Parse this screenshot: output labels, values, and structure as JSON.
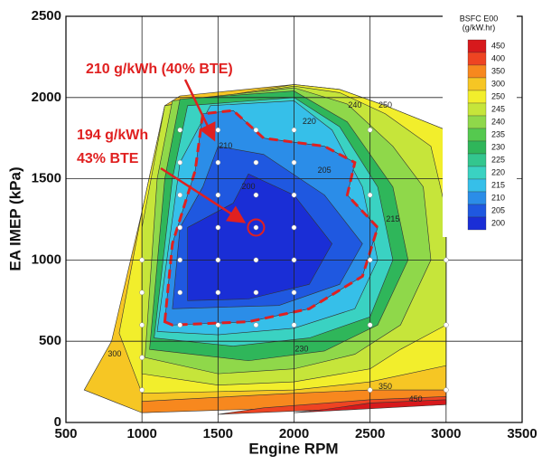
{
  "chart_data": {
    "type": "contour",
    "xlabel": "Engine RPM",
    "ylabel": "EA IMEP (kPa)",
    "xlim": [
      500,
      3500
    ],
    "ylim": [
      0,
      2500
    ],
    "xticks": [
      500,
      1000,
      1500,
      2000,
      2500,
      3000,
      3500
    ],
    "yticks": [
      0,
      500,
      1000,
      1500,
      2000,
      2500
    ],
    "grid": true,
    "colorbar": {
      "title": [
        "BSFC E00",
        "(g/kW.hr)"
      ],
      "levels": [
        450,
        400,
        350,
        300,
        250,
        245,
        240,
        235,
        230,
        225,
        220,
        215,
        210,
        205,
        200
      ],
      "colors": [
        "#d7191c",
        "#ee4422",
        "#f7881e",
        "#f6c624",
        "#f2ee2c",
        "#c6e53a",
        "#8fd84a",
        "#55c94f",
        "#2fb65a",
        "#33c68e",
        "#3ad2c2",
        "#36bfe9",
        "#2b8de8",
        "#1f58e0",
        "#1a2ed6"
      ]
    },
    "contours": [
      {
        "level": 300,
        "color": "#f6c624",
        "x": [
          620,
          800,
          1000,
          1150,
          1250,
          2000,
          2300,
          2600,
          3000,
          3000,
          1000
        ],
        "y": [
          200,
          500,
          1300,
          1950,
          2010,
          2080,
          2050,
          1950,
          1800,
          150,
          60
        ]
      },
      {
        "level": 250,
        "color": "#f2ee2c",
        "x": [
          850,
          1000,
          1150,
          2000,
          2300,
          2600,
          3000,
          3000,
          2500,
          2000,
          1500,
          1000
        ],
        "y": [
          550,
          1300,
          1950,
          2080,
          2050,
          1950,
          1800,
          350,
          250,
          200,
          190,
          180
        ]
      },
      {
        "level": 245,
        "color": "#c6e53a",
        "x": [
          1000,
          1000,
          1150,
          2000,
          2300,
          2600,
          2900,
          3000,
          3000,
          2700,
          2500,
          2000,
          1500
        ],
        "y": [
          300,
          1200,
          1950,
          2070,
          2030,
          1900,
          1700,
          1300,
          600,
          450,
          330,
          250,
          230
        ]
      },
      {
        "level": 240,
        "color": "#8fd84a",
        "x": [
          1020,
          1100,
          1200,
          2000,
          2350,
          2650,
          2850,
          2900,
          2700,
          2400,
          2000,
          1500
        ],
        "y": [
          400,
          1500,
          1980,
          2060,
          1960,
          1700,
          1450,
          1000,
          600,
          420,
          330,
          300
        ]
      },
      {
        "level": 230,
        "color": "#2fb65a",
        "x": [
          1050,
          1150,
          1250,
          2000,
          2350,
          2650,
          2750,
          2550,
          2200,
          1700
        ],
        "y": [
          450,
          1500,
          1990,
          2040,
          1850,
          1450,
          1000,
          600,
          440,
          380
        ]
      },
      {
        "level": 220,
        "color": "#3ad2c2",
        "x": [
          1080,
          1200,
          1300,
          2000,
          2300,
          2550,
          2650,
          2500,
          2100,
          1600
        ],
        "y": [
          520,
          1500,
          1950,
          2000,
          1820,
          1450,
          1000,
          650,
          520,
          470
        ]
      },
      {
        "level": 215,
        "color": "#36bfe9",
        "x": [
          1100,
          1250,
          1450,
          2000,
          2250,
          2450,
          2550,
          2400,
          2000,
          1500
        ],
        "y": [
          560,
          1600,
          1950,
          1980,
          1800,
          1450,
          1000,
          700,
          580,
          540
        ]
      },
      {
        "level": 210,
        "color": "#2b8de8",
        "outline_color": "#e02020",
        "dashed": true,
        "x": [
          1150,
          1200,
          1350,
          1400,
          1600,
          1800,
          2200,
          2400,
          2350,
          2550,
          2450,
          2100,
          1700,
          1200
        ],
        "y": [
          620,
          1100,
          1550,
          1900,
          1920,
          1750,
          1700,
          1600,
          1400,
          1200,
          900,
          700,
          620,
          600
        ]
      },
      {
        "level": 205,
        "color": "#1f58e0",
        "x": [
          1200,
          1250,
          1400,
          1500,
          1800,
          2200,
          2450,
          2300,
          1900
        ],
        "y": [
          700,
          1200,
          1450,
          1700,
          1650,
          1400,
          1100,
          850,
          720
        ]
      },
      {
        "level": 200,
        "color": "#1a2ed6",
        "x": [
          1300,
          1300,
          1600,
          1700,
          2000,
          2250,
          2100,
          1700
        ],
        "y": [
          750,
          1200,
          1350,
          1530,
          1400,
          1100,
          850,
          760
        ]
      },
      {
        "level": 350,
        "color": "#f7881e",
        "x": [
          1000,
          3000,
          3000,
          2500,
          2000,
          1000
        ],
        "y": [
          60,
          120,
          200,
          200,
          180,
          130
        ]
      },
      {
        "level": 400,
        "color": "#ee4422",
        "x": [
          1500,
          3000,
          3000,
          2500,
          1800
        ],
        "y": [
          50,
          110,
          160,
          140,
          90
        ]
      },
      {
        "level": 450,
        "color": "#d7191c",
        "x": [
          2000,
          3000,
          3000,
          2500,
          2200
        ],
        "y": [
          60,
          110,
          140,
          120,
          80
        ]
      }
    ],
    "points": {
      "x": [
        1000,
        1000,
        1000,
        1000,
        1000,
        1250,
        1250,
        1250,
        1250,
        1250,
        1250,
        1250,
        1500,
        1500,
        1500,
        1500,
        1500,
        1500,
        1500,
        1750,
        1750,
        1750,
        1750,
        1750,
        1750,
        1750,
        2000,
        2000,
        2000,
        2000,
        2000,
        2000,
        2000,
        2500,
        2500,
        2500,
        2500,
        2500,
        3000,
        3000,
        3000,
        3000,
        3000
      ],
      "y": [
        200,
        400,
        600,
        800,
        1000,
        600,
        800,
        1000,
        1200,
        1400,
        1600,
        1800,
        600,
        800,
        1000,
        1200,
        1400,
        1600,
        1800,
        600,
        800,
        1000,
        1200,
        1400,
        1600,
        1800,
        600,
        800,
        1000,
        1200,
        1400,
        1600,
        1800,
        200,
        600,
        1000,
        1400,
        1800,
        200,
        600,
        1000,
        1400,
        1800
      ]
    },
    "highlight": {
      "x": 1750,
      "y": 1200,
      "color": "#e02020"
    },
    "annotations": [
      "210 g/kWh (40% BTE)",
      "194 g/kWh",
      "43% BTE"
    ]
  }
}
